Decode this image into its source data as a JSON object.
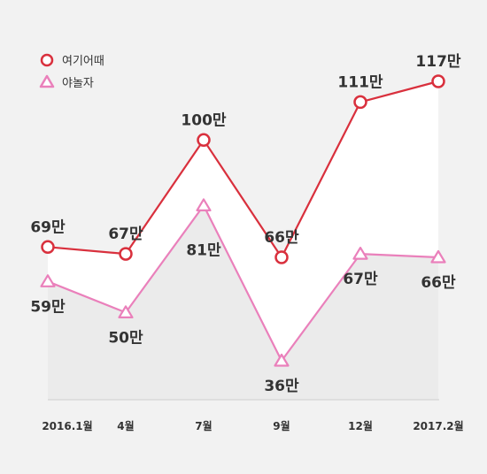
{
  "chart_data": {
    "type": "line",
    "categories": [
      "2016.1월",
      "4월",
      "7월",
      "9월",
      "12월",
      "2017.2월"
    ],
    "series": [
      {
        "name": "여기어때",
        "values": [
          69,
          67,
          100,
          66,
          111,
          117
        ],
        "labels": [
          "69만",
          "67만",
          "100만",
          "66만",
          "111만",
          "117만"
        ],
        "color": "#d9303d",
        "marker": "circle"
      },
      {
        "name": "야놀자",
        "values": [
          59,
          50,
          81,
          36,
          67,
          66
        ],
        "labels": [
          "59만",
          "50만",
          "81만",
          "36만",
          "67만",
          "66만"
        ],
        "color": "#ea80bb",
        "marker": "triangle"
      }
    ],
    "title": "",
    "xlabel": "",
    "ylabel": "",
    "ylim": [
      0,
      130
    ],
    "grid": false,
    "legend": "top-left",
    "area_fill_series_1": "#ffffff",
    "area_fill_series_2": "#ebebeb"
  }
}
